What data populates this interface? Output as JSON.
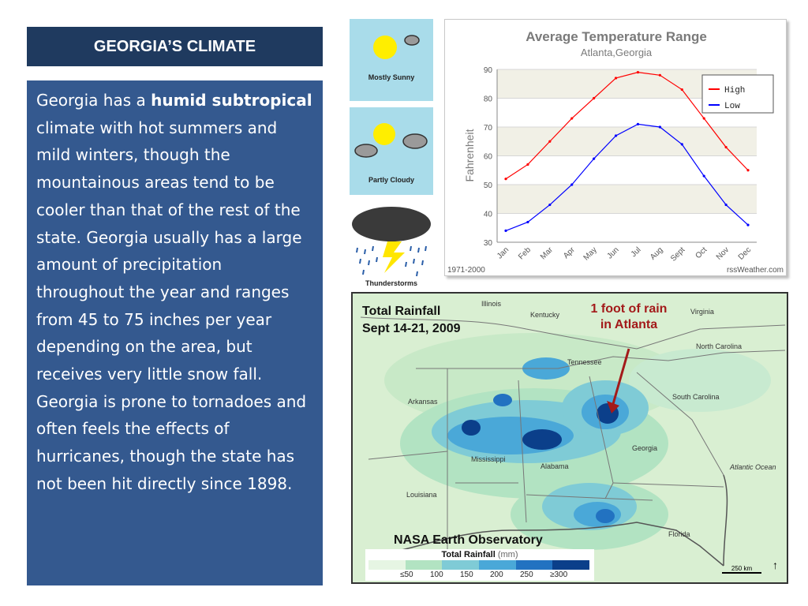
{
  "slide": {
    "title": "GEORGIA’S CLIMATE",
    "paragraph": {
      "pre": "Georgia has a ",
      "bold": "humid subtropical",
      "post": " climate with hot summers and mild winters, though the mountainous areas tend to be cooler than that of the rest of the state. Georgia usually has a large amount of precipitation throughout the year and ranges from 45 to 75 inches per year depending on the area, but receives very little snow fall. Georgia is prone to tornadoes and often feels the effects of hurricanes, though the state has not been hit directly since 1898."
    }
  },
  "weather_icons": [
    {
      "label": "Mostly Sunny",
      "icon": "mostly-sunny-icon"
    },
    {
      "label": "Partly Cloudy",
      "icon": "partly-cloudy-icon"
    },
    {
      "label": "Thunderstorms",
      "icon": "thunderstorm-icon"
    }
  ],
  "chart_data": {
    "type": "line",
    "title": "Average Temperature Range",
    "subtitle": "Atlanta,Georgia",
    "ylabel": "Fahrenheit",
    "xlabel": "",
    "categories": [
      "Jan",
      "Feb",
      "Mar",
      "Apr",
      "May",
      "Jun",
      "Jul",
      "Aug",
      "Sept",
      "Oct",
      "Nov",
      "Dec"
    ],
    "series": [
      {
        "name": "High",
        "color": "#ff0000",
        "values": [
          52,
          57,
          65,
          73,
          80,
          87,
          89,
          88,
          83,
          73,
          63,
          55
        ]
      },
      {
        "name": "Low",
        "color": "#0000ff",
        "values": [
          34,
          37,
          43,
          50,
          59,
          67,
          71,
          70,
          64,
          53,
          43,
          36
        ]
      }
    ],
    "yticks": [
      30,
      40,
      50,
      60,
      70,
      80,
      90
    ],
    "ylim": [
      30,
      90
    ],
    "grid": true,
    "legend_position": "top-right",
    "footer_left": "1971-2000",
    "footer_right": "rssWeather.com"
  },
  "map": {
    "title_line1": "Total Rainfall",
    "title_line2": "Sept 14-21, 2009",
    "callout_line1": "1 foot of rain",
    "callout_line2": "in Atlanta",
    "credit": "NASA Earth Observatory",
    "scale_title": "Total Rainfall",
    "scale_unit": "(mm)",
    "scale_labels": [
      "≤50",
      "100",
      "150",
      "200",
      "250",
      "≥300"
    ],
    "scale_colors": [
      "#e6f5e3",
      "#b2e3c2",
      "#7fcbd6",
      "#4aa8d8",
      "#2272c1",
      "#0b3f8a"
    ],
    "scale_bar_label": "250 km",
    "places": {
      "illinois": "Illinois",
      "kentucky": "Kentucky",
      "virginia": "Virginia",
      "tennessee": "Tennessee",
      "north_carolina": "North Carolina",
      "arkansas": "Arkansas",
      "south_carolina": "South Carolina",
      "mississippi": "Mississippi",
      "alabama": "Alabama",
      "georgia": "Georgia",
      "louisiana": "Louisiana",
      "florida": "Florida",
      "atlantic_ocean": "Atlantic Ocean"
    }
  }
}
